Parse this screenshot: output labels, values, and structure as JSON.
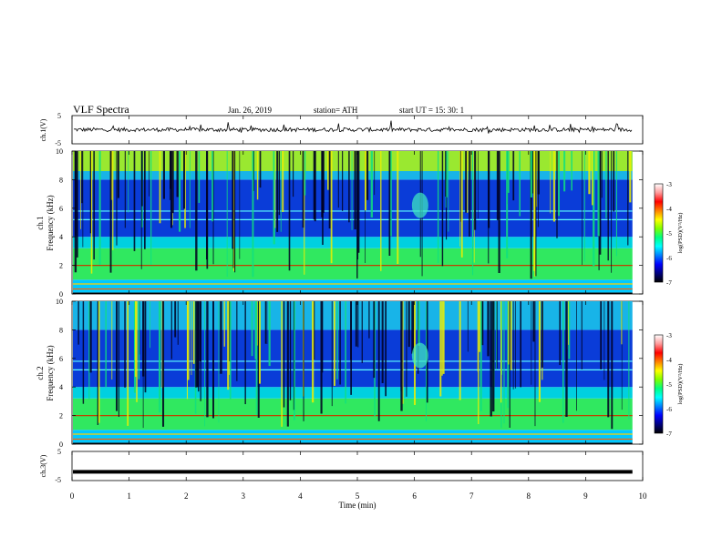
{
  "header": {
    "title": "VLF Spectra",
    "date": "Jan. 26, 2019",
    "station": "station= ATH",
    "start": "start UT =   15: 30: 1"
  },
  "colors": {
    "colormap": [
      "#000000",
      "#00007f",
      "#0000ff",
      "#0080ff",
      "#00ffff",
      "#00ff80",
      "#80ff00",
      "#ffff00",
      "#ff8000",
      "#ff0000",
      "#ff9999",
      "#ffffff"
    ]
  },
  "chart_data": [
    {
      "type": "line",
      "name": "ch1-voltage",
      "ylabel": "ch.1(V)",
      "ylim": [
        -5,
        5
      ],
      "yticks": [
        "5",
        "-5"
      ],
      "xlim": [
        0,
        10
      ],
      "description_level_v": 0
    },
    {
      "type": "heatmap",
      "name": "ch1-spectrogram",
      "ylabel": "ch.1\nFrequency (kHz)",
      "ylim": [
        0,
        10
      ],
      "yticks": [
        "10",
        "8",
        "6",
        "4",
        "2",
        "0"
      ],
      "xlim": [
        0,
        10
      ],
      "data_end_min": 9.82,
      "colorbar": {
        "label": "log(PSD)(V²/Hz)",
        "range": [
          -7,
          -3
        ],
        "ticks": [
          "-3",
          "-4",
          "-5",
          "-6",
          "-7"
        ]
      }
    },
    {
      "type": "heatmap",
      "name": "ch2-spectrogram",
      "ylabel": "ch.2\nFrequency (kHz)",
      "ylim": [
        0,
        10
      ],
      "yticks": [
        "10",
        "8",
        "6",
        "4",
        "2",
        "0"
      ],
      "xlim": [
        0,
        10
      ],
      "data_end_min": 9.82,
      "colorbar": {
        "label": "log(PSD)(V²/Hz)",
        "range": [
          -7,
          -3
        ],
        "ticks": [
          "-3",
          "-4",
          "-5",
          "-6",
          "-7"
        ]
      }
    },
    {
      "type": "line",
      "name": "ch3-voltage",
      "ylabel": "ch.3(V)",
      "ylim": [
        -5,
        5
      ],
      "yticks": [
        "5",
        "-5"
      ],
      "xlim": [
        0,
        10
      ],
      "level_v": -2
    }
  ],
  "xaxis": {
    "label": "Time (min)",
    "ticks": [
      "0",
      "1",
      "2",
      "3",
      "4",
      "5",
      "6",
      "7",
      "8",
      "9",
      "10"
    ]
  },
  "labels": {
    "ch1v_line1": "ch.1(V)",
    "spec1_line1": "ch.1",
    "spec1_line2": "Frequency (kHz)",
    "spec2_line1": "ch.2",
    "spec2_line2": "Frequency (kHz)",
    "ch3v_line1": "ch.3(V)",
    "cbar_label": "log(PSD)(V²/Hz)"
  }
}
